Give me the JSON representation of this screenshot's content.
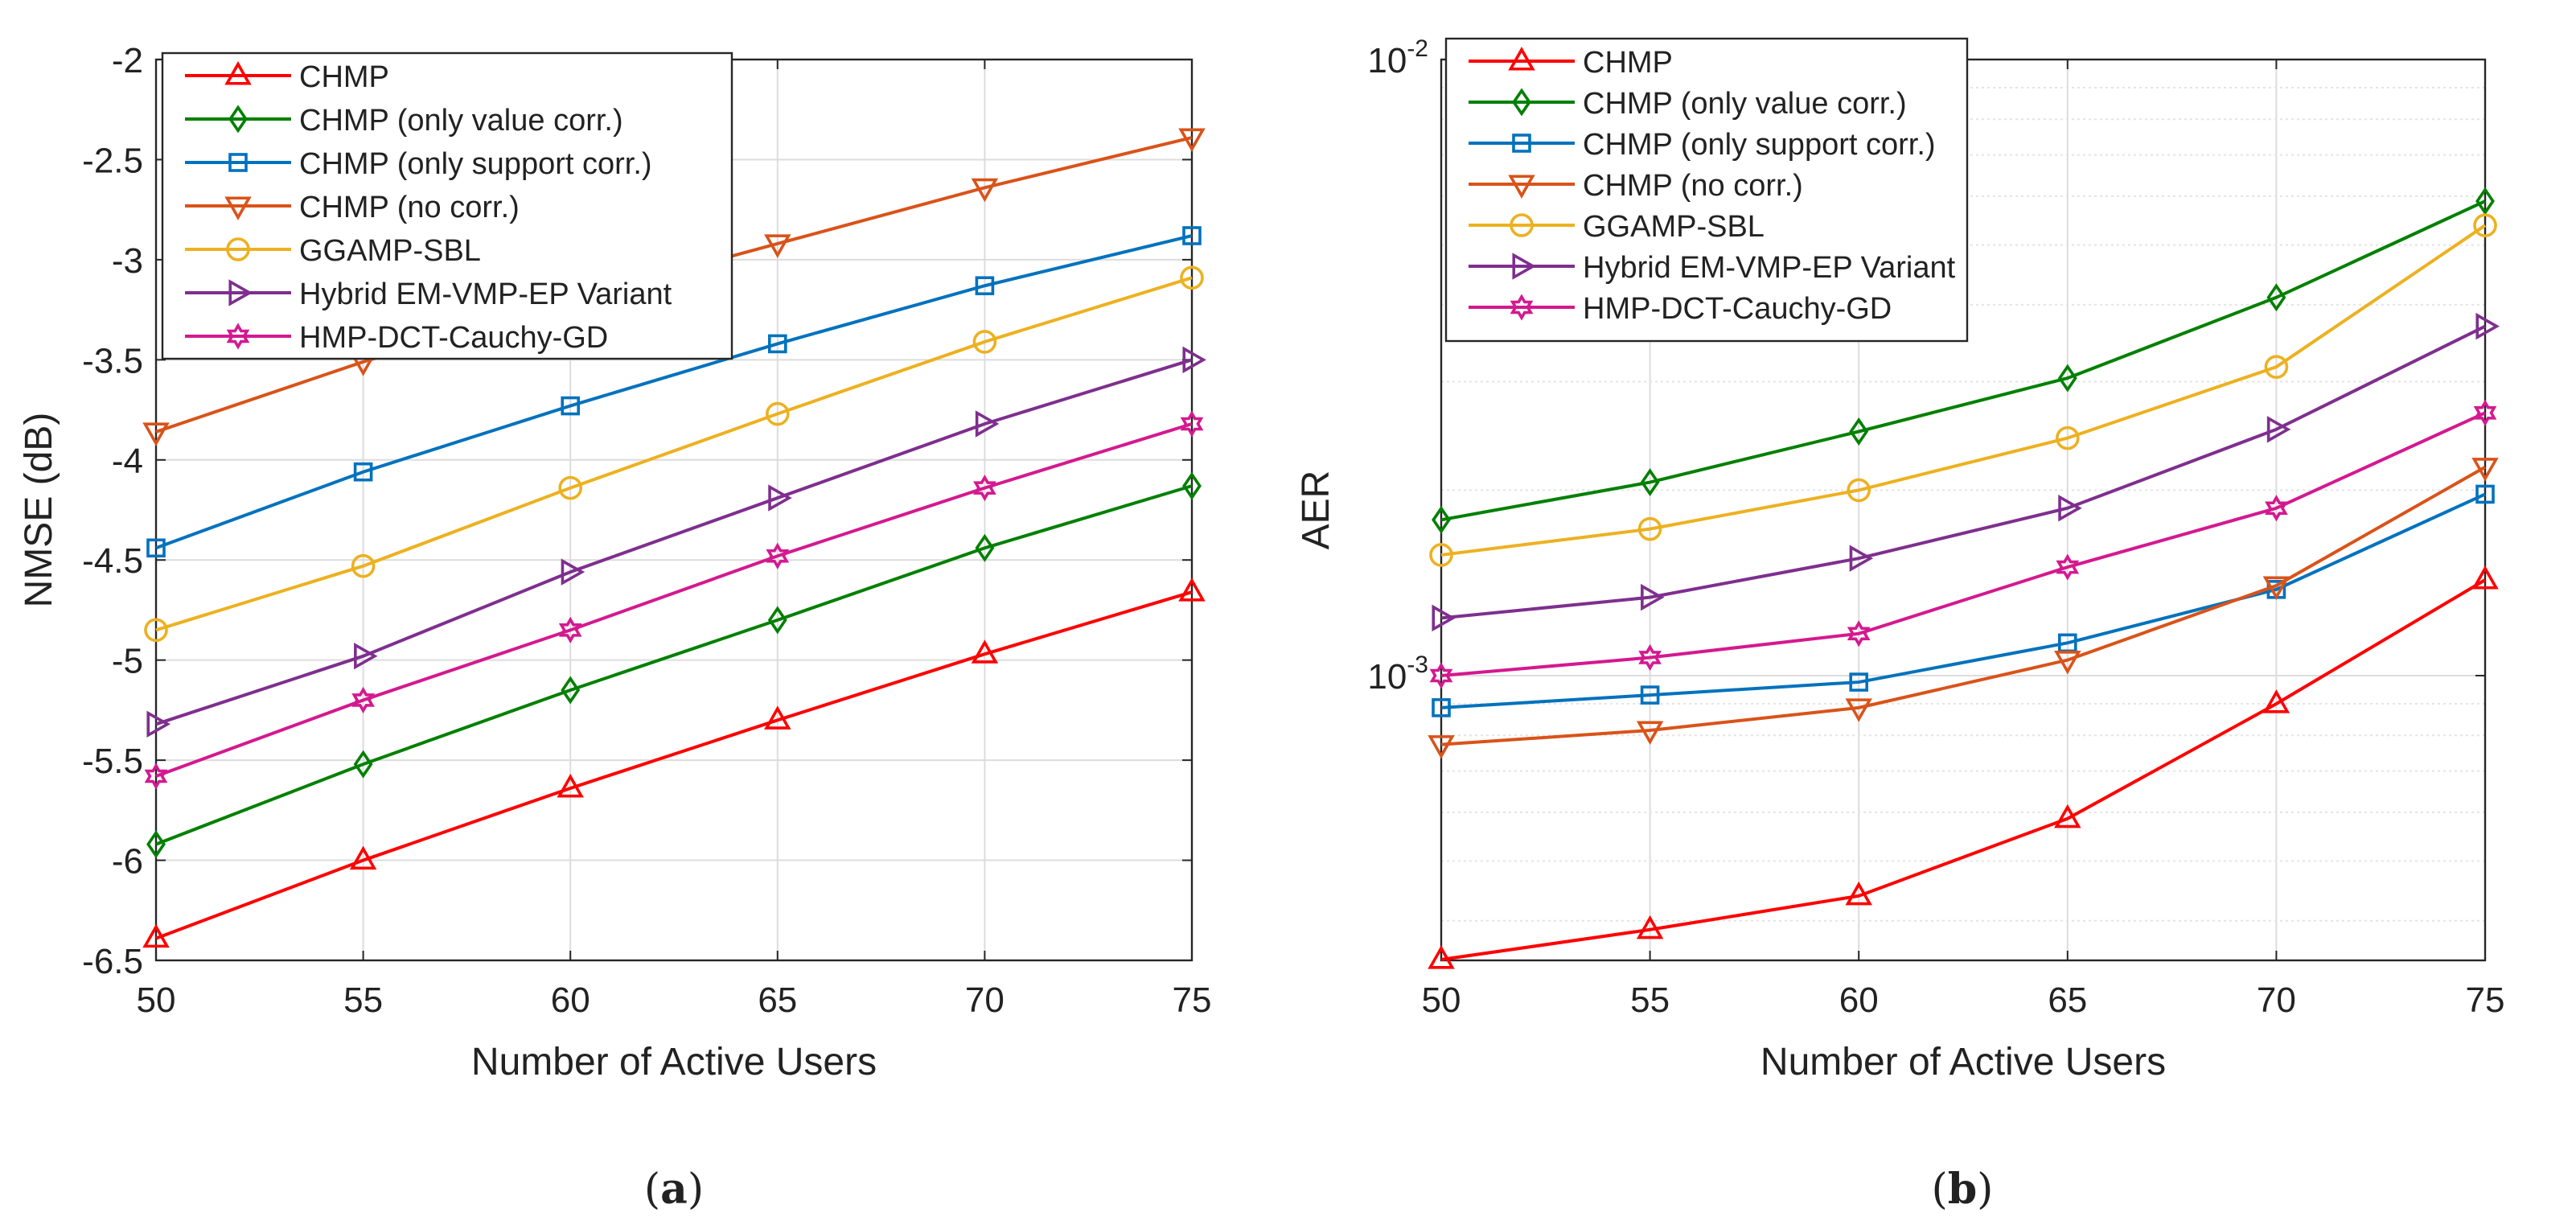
{
  "chart_data": [
    {
      "type": "line",
      "caption": "(a)",
      "caption_letter": "a",
      "xlabel": "Number of Active Users",
      "ylabel": "NMSE (dB)",
      "yscale": "linear",
      "xlim": [
        50,
        75
      ],
      "ylim": [
        -6.5,
        -2
      ],
      "x_ticks": [
        50,
        55,
        60,
        65,
        70,
        75
      ],
      "x_tick_labels": [
        "50",
        "55",
        "60",
        "65",
        "70",
        "75"
      ],
      "y_ticks": [
        -6.5,
        -6,
        -5.5,
        -5,
        -4.5,
        -4,
        -3.5,
        -3,
        -2.5,
        -2
      ],
      "y_tick_labels": [
        "-6.5",
        "-6",
        "-5.5",
        "-5",
        "-4.5",
        "-4",
        "-3.5",
        "-3",
        "-2.5",
        "-2"
      ],
      "grid": true,
      "legend_position": "top-left",
      "x": [
        50,
        55,
        60,
        65,
        70,
        75
      ],
      "series": [
        {
          "name": "CHMP",
          "color": "#FF0000",
          "marker": "triangle-up",
          "values": [
            -6.39,
            -6.0,
            -5.64,
            -5.3,
            -4.97,
            -4.66
          ]
        },
        {
          "name": "CHMP (only value corr.)",
          "color": "#008000",
          "marker": "diamond",
          "values": [
            -5.92,
            -5.52,
            -5.15,
            -4.8,
            -4.44,
            -4.13
          ]
        },
        {
          "name": "CHMP (only support corr.)",
          "color": "#0072BD",
          "marker": "square",
          "values": [
            -4.44,
            -4.06,
            -3.73,
            -3.42,
            -3.13,
            -2.88
          ]
        },
        {
          "name": "CHMP (no corr.)",
          "color": "#D95319",
          "marker": "triangle-down",
          "values": [
            -3.86,
            -3.51,
            -3.2,
            -2.92,
            -2.64,
            -2.39
          ]
        },
        {
          "name": "GGAMP-SBL",
          "color": "#EDB120",
          "marker": "circle",
          "values": [
            -4.85,
            -4.53,
            -4.14,
            -3.77,
            -3.41,
            -3.09
          ]
        },
        {
          "name": "Hybrid EM-VMP-EP Variant",
          "color": "#7E2F8E",
          "marker": "triangle-right",
          "values": [
            -5.32,
            -4.98,
            -4.56,
            -4.19,
            -3.82,
            -3.5
          ]
        },
        {
          "name": "HMP-DCT-Cauchy-GD",
          "color": "#D4198F",
          "marker": "hexagram",
          "values": [
            -5.58,
            -5.2,
            -4.85,
            -4.48,
            -4.14,
            -3.82
          ]
        }
      ]
    },
    {
      "type": "line",
      "caption": "(b)",
      "caption_letter": "b",
      "xlabel": "Number of Active Users",
      "ylabel": "AER",
      "yscale": "log",
      "xlim": [
        50,
        75
      ],
      "ylim": [
        0.000345,
        0.01
      ],
      "x_ticks": [
        50,
        55,
        60,
        65,
        70,
        75
      ],
      "x_tick_labels": [
        "50",
        "55",
        "60",
        "65",
        "70",
        "75"
      ],
      "y_ticks": [
        0.001,
        0.01
      ],
      "y_tick_labels": [
        {
          "base": "10",
          "exp": "-3"
        },
        {
          "base": "10",
          "exp": "-2"
        }
      ],
      "grid": true,
      "legend_position": "top-left",
      "x": [
        50,
        55,
        60,
        65,
        70,
        75
      ],
      "series": [
        {
          "name": "CHMP",
          "color": "#FF0000",
          "marker": "triangle-up",
          "values": [
            0.000346,
            0.000387,
            0.000439,
            0.000586,
            0.0009,
            0.00143
          ]
        },
        {
          "name": "CHMP (only value corr.)",
          "color": "#008000",
          "marker": "diamond",
          "values": [
            0.00179,
            0.00206,
            0.00249,
            0.00304,
            0.00411,
            0.00589
          ]
        },
        {
          "name": "CHMP (only support corr.)",
          "color": "#0072BD",
          "marker": "square",
          "values": [
            0.000887,
            0.00093,
            0.000976,
            0.00113,
            0.00138,
            0.00197
          ]
        },
        {
          "name": "CHMP (no corr.)",
          "color": "#D95319",
          "marker": "triangle-down",
          "values": [
            0.000773,
            0.000815,
            0.000887,
            0.00106,
            0.0014,
            0.00218
          ]
        },
        {
          "name": "GGAMP-SBL",
          "color": "#EDB120",
          "marker": "circle",
          "values": [
            0.00157,
            0.00173,
            0.002,
            0.00243,
            0.00317,
            0.00538
          ]
        },
        {
          "name": "Hybrid EM-VMP-EP Variant",
          "color": "#7E2F8E",
          "marker": "triangle-right",
          "values": [
            0.00124,
            0.00134,
            0.00155,
            0.00187,
            0.00251,
            0.00369
          ]
        },
        {
          "name": "HMP-DCT-Cauchy-GD",
          "color": "#D4198F",
          "marker": "hexagram",
          "values": [
            0.001,
            0.00107,
            0.00117,
            0.0015,
            0.00187,
            0.00267
          ]
        }
      ]
    }
  ]
}
